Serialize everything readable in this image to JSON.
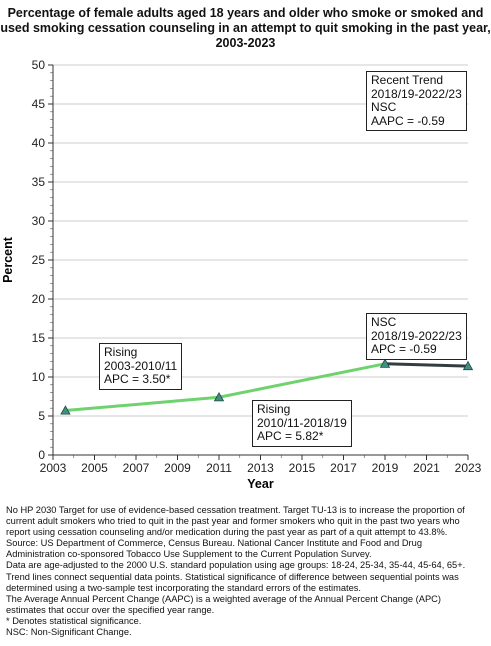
{
  "chart_data": {
    "type": "line",
    "title_lines": [
      "Percentage of  female adults  aged 18 years and older who smoke or smoked and",
      "used smoking cessation counseling in an attempt to quit smoking in the past year,",
      "2003-2023"
    ],
    "xlabel": "Year",
    "ylabel": "Percent",
    "xlim": [
      2003,
      2023
    ],
    "ylim": [
      0,
      50
    ],
    "x_ticks": [
      2003,
      2005,
      2007,
      2009,
      2011,
      2013,
      2015,
      2017,
      2019,
      2021,
      2023
    ],
    "y_ticks": [
      0,
      5,
      10,
      15,
      20,
      25,
      30,
      35,
      40,
      45,
      50
    ],
    "grid": true,
    "points": [
      {
        "label": "2003",
        "x": 2003.6,
        "y": 5.7
      },
      {
        "label": "2010/11",
        "x": 2011.0,
        "y": 7.4
      },
      {
        "label": "2018/19",
        "x": 2019.0,
        "y": 11.7
      },
      {
        "label": "2022/23",
        "x": 2023.0,
        "y": 11.4
      }
    ],
    "segments": [
      {
        "from": 0,
        "to": 1,
        "color": "#6ed36e"
      },
      {
        "from": 1,
        "to": 2,
        "color": "#6ed36e"
      },
      {
        "from": 2,
        "to": 3,
        "color": "#333d40"
      }
    ],
    "annotations": [
      {
        "lines": [
          "Rising",
          "2003-2010/11",
          "APC =  3.50*"
        ]
      },
      {
        "lines": [
          "Rising",
          "2010/11-2018/19",
          "APC =  5.82*"
        ]
      },
      {
        "lines": [
          "NSC",
          "2018/19-2022/23",
          "APC = -0.59"
        ]
      },
      {
        "lines": [
          "Recent Trend",
          "2018/19-2022/23",
          "NSC",
          "AAPC = -0.59"
        ]
      }
    ],
    "colors": {
      "rising": "#6ed36e",
      "nsc": "#333d40",
      "marker": "#3f8f82",
      "grid": "#bbbbbb"
    }
  },
  "footnotes": [
    "No HP 2030 Target for use of evidence-based cessation treatment. Target TU-13 is to increase the proportion of",
    "current adult smokers who tried to quit in the past year and former smokers who quit in the past two years who",
    "report using cessation counseling and/or medication during the past year as part of a quit attempt to 43.8%.",
    "Source: US Department of Commerce, Census Bureau. National Cancer Institute and Food and Drug",
    "Administration co-sponsored Tobacco Use Supplement to the Current Population Survey.",
    "Data are age-adjusted to the 2000 U.S. standard population using age groups: 18-24, 25-34, 35-44, 45-64, 65+.",
    "Trend lines connect sequential data points. Statistical significance of difference between sequential points was",
    "determined using a two-sample test incorporating the standard errors of the estimates.",
    "The Average Annual Percent Change (AAPC) is a weighted average of the Annual Percent Change (APC)",
    "estimates that occur over the specified year range.",
    "* Denotes statistical significance.",
    "NSC: Non-Significant Change."
  ]
}
